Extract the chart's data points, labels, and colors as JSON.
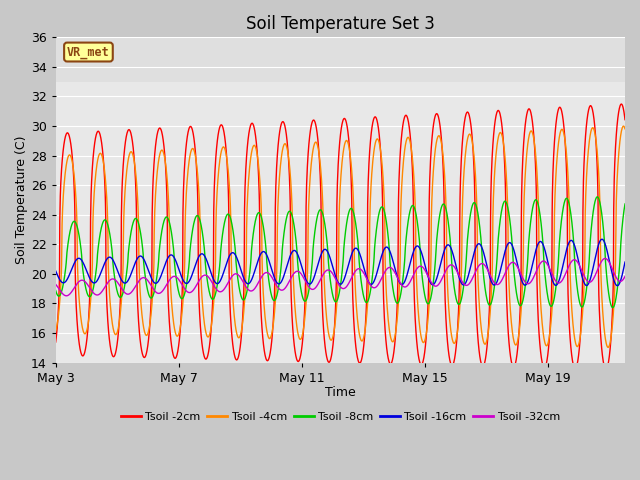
{
  "title": "Soil Temperature Set 3",
  "xlabel": "Time",
  "ylabel": "Soil Temperature (C)",
  "ylim": [
    14,
    36
  ],
  "yticks": [
    14,
    16,
    18,
    20,
    22,
    24,
    26,
    28,
    30,
    32,
    34,
    36
  ],
  "xlim_days": [
    0,
    18.5
  ],
  "xtick_positions": [
    0,
    4,
    8,
    12,
    16
  ],
  "xtick_labels": [
    "May 3",
    "May 7",
    "May 11",
    "May 15",
    "May 19"
  ],
  "annotation_text": "VR_met",
  "fig_facecolor": "#c8c8c8",
  "plot_facecolor": "#e8e8e8",
  "line_colors": [
    "#ff0000",
    "#ff8800",
    "#00cc00",
    "#0000dd",
    "#cc00cc"
  ],
  "line_labels": [
    "Tsoil -2cm",
    "Tsoil -4cm",
    "Tsoil -8cm",
    "Tsoil -16cm",
    "Tsoil -32cm"
  ],
  "grid_color": "#ffffff",
  "title_fontsize": 12,
  "axis_fontsize": 9,
  "tick_fontsize": 9,
  "n_days": 18.5,
  "points_per_day": 120
}
